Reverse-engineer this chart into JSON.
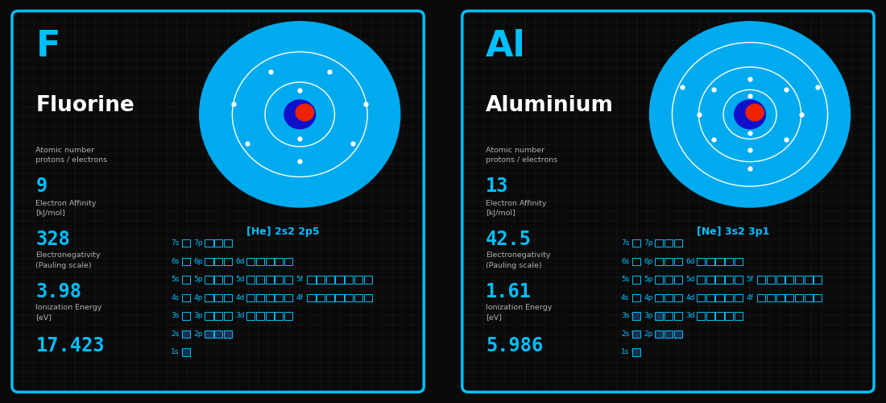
{
  "bg_color": "#0a0a0a",
  "card_bg": "#1c1c1c",
  "card_border": "#00bfff",
  "cyan": "#00bfff",
  "white": "#ffffff",
  "light_gray": "#b0b0b0",
  "elements": [
    {
      "symbol": "F",
      "name": "Fluorine",
      "atomic_number": "9",
      "electron_affinity": "328",
      "electronegativity": "3.98",
      "ionization": "17.423",
      "config": "[He] 2s2 2p5",
      "orbit_radii": [
        0.085,
        0.165
      ],
      "orbit_electrons": [
        2,
        7
      ],
      "rows": [
        {
          "segs": [
            [
              "7s",
              0,
              0,
              1
            ],
            [
              "7p",
              0,
              0,
              3
            ]
          ]
        },
        {
          "segs": [
            [
              "6s",
              0,
              0,
              1
            ],
            [
              "6p",
              0,
              0,
              3
            ],
            [
              "6d",
              0,
              0,
              5
            ]
          ]
        },
        {
          "segs": [
            [
              "5s",
              0,
              0,
              1
            ],
            [
              "5p",
              0,
              0,
              3
            ],
            [
              "5d",
              0,
              0,
              5
            ],
            [
              "5f",
              0,
              0,
              7
            ]
          ]
        },
        {
          "segs": [
            [
              "4s",
              0,
              0,
              1
            ],
            [
              "4p",
              0,
              0,
              3
            ],
            [
              "4d",
              0,
              0,
              5
            ],
            [
              "4f",
              0,
              0,
              7
            ]
          ]
        },
        {
          "segs": [
            [
              "3s",
              0,
              0,
              1
            ],
            [
              "3p",
              0,
              0,
              3
            ],
            [
              "3d",
              0,
              0,
              5
            ]
          ]
        },
        {
          "segs": [
            [
              "2s",
              1,
              0,
              0
            ],
            [
              "2p",
              2,
              1,
              0
            ]
          ]
        },
        {
          "segs": [
            [
              "1s",
              1,
              0,
              0
            ]
          ]
        }
      ]
    },
    {
      "symbol": "Al",
      "name": "Aluminium",
      "atomic_number": "13",
      "electron_affinity": "42.5",
      "electronegativity": "1.61",
      "ionization": "5.986",
      "config": "[Ne] 3s2 3p1",
      "orbit_radii": [
        0.065,
        0.125,
        0.19
      ],
      "orbit_electrons": [
        2,
        8,
        3
      ],
      "rows": [
        {
          "segs": [
            [
              "7s",
              0,
              0,
              1
            ],
            [
              "7p",
              0,
              0,
              3
            ]
          ]
        },
        {
          "segs": [
            [
              "6s",
              0,
              0,
              1
            ],
            [
              "6p",
              0,
              0,
              3
            ],
            [
              "6d",
              0,
              0,
              5
            ]
          ]
        },
        {
          "segs": [
            [
              "5s",
              0,
              0,
              1
            ],
            [
              "5p",
              0,
              0,
              3
            ],
            [
              "5d",
              0,
              0,
              5
            ],
            [
              "5f",
              0,
              0,
              7
            ]
          ]
        },
        {
          "segs": [
            [
              "4s",
              0,
              0,
              1
            ],
            [
              "4p",
              0,
              0,
              3
            ],
            [
              "4d",
              0,
              0,
              5
            ],
            [
              "4f",
              0,
              0,
              7
            ]
          ]
        },
        {
          "segs": [
            [
              "3s",
              1,
              0,
              0
            ],
            [
              "3p",
              0,
              1,
              2
            ],
            [
              "3d",
              0,
              0,
              5
            ]
          ]
        },
        {
          "segs": [
            [
              "2s",
              1,
              0,
              0
            ],
            [
              "2p",
              2,
              1,
              0
            ]
          ]
        },
        {
          "segs": [
            [
              "1s",
              1,
              0,
              0
            ]
          ]
        }
      ]
    }
  ]
}
